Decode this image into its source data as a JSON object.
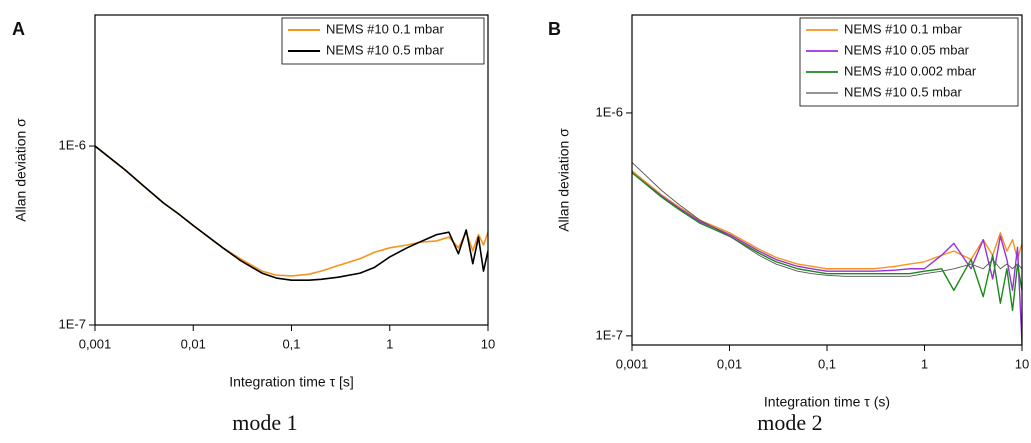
{
  "chart_data": [
    {
      "type": "line",
      "panel_label": "A",
      "caption": "mode 1",
      "xlabel": "Integration time  τ [s]",
      "ylabel": "Allan deviation σ",
      "log_x": true,
      "log_y": true,
      "legend": "upper right",
      "xlim": [
        0.001,
        10
      ],
      "xticks": [
        {
          "value": 0.001,
          "label": "0,001"
        },
        {
          "value": 0.01,
          "label": "0,01"
        },
        {
          "value": 0.1,
          "label": "0,1"
        },
        1,
        10
      ],
      "ylim": [
        1e-07,
        5.4e-06
      ],
      "yticks": [
        {
          "value": 1e-06,
          "label": "1E-6"
        },
        {
          "value": 1e-07,
          "label": "1E-7"
        }
      ],
      "x": [
        0.001,
        0.002,
        0.003,
        0.005,
        0.007,
        0.01,
        0.02,
        0.03,
        0.05,
        0.07,
        0.1,
        0.15,
        0.2,
        0.3,
        0.5,
        0.7,
        1,
        1.5,
        2,
        3,
        4,
        5,
        6,
        7,
        8,
        9,
        10
      ],
      "series": [
        {
          "name": "NEMS #10 0.1 mbar",
          "color": "#f7941d",
          "width": 1.6,
          "values": [
            1e-06,
            7.4e-07,
            6.1e-07,
            4.8e-07,
            4.2e-07,
            3.6e-07,
            2.7e-07,
            2.35e-07,
            2e-07,
            1.9e-07,
            1.88e-07,
            1.92e-07,
            2e-07,
            2.15e-07,
            2.35e-07,
            2.55e-07,
            2.7e-07,
            2.8e-07,
            2.9e-07,
            2.95e-07,
            3.1e-07,
            2.7e-07,
            3.3e-07,
            2.6e-07,
            3.2e-07,
            2.8e-07,
            3.3e-07
          ]
        },
        {
          "name": "NEMS #10 0.5 mbar",
          "color": "#000000",
          "width": 1.6,
          "values": [
            1e-06,
            7.4e-07,
            6.1e-07,
            4.8e-07,
            4.2e-07,
            3.6e-07,
            2.7e-07,
            2.3e-07,
            1.95e-07,
            1.83e-07,
            1.78e-07,
            1.78e-07,
            1.8e-07,
            1.85e-07,
            1.95e-07,
            2.1e-07,
            2.4e-07,
            2.7e-07,
            2.9e-07,
            3.2e-07,
            3.3e-07,
            2.5e-07,
            3.4e-07,
            2.2e-07,
            3.1e-07,
            2e-07,
            2.6e-07
          ]
        }
      ]
    },
    {
      "type": "line",
      "panel_label": "B",
      "caption": "mode 2",
      "xlabel": "Integration time τ (s)",
      "ylabel": "Allan deviation σ",
      "log_x": true,
      "log_y": true,
      "legend": "upper right",
      "xlim": [
        0.001,
        10
      ],
      "xticks": [
        {
          "value": 0.001,
          "label": "0,001"
        },
        {
          "value": 0.01,
          "label": "0,01"
        },
        {
          "value": 0.1,
          "label": "0,1"
        },
        1,
        10
      ],
      "ylim": [
        9.1e-08,
        2.75e-06
      ],
      "yticks": [
        {
          "value": 1e-06,
          "label": "1E-6"
        },
        {
          "value": 1e-07,
          "label": "1E-7"
        }
      ],
      "x": [
        0.001,
        0.002,
        0.003,
        0.005,
        0.007,
        0.01,
        0.02,
        0.03,
        0.05,
        0.07,
        0.1,
        0.15,
        0.2,
        0.3,
        0.5,
        0.7,
        1,
        1.5,
        2,
        3,
        4,
        5,
        6,
        7,
        8,
        9,
        10
      ],
      "series": [
        {
          "name": "NEMS #10 0.1 mbar",
          "color": "#f7941d",
          "width": 1.4,
          "values": [
            5.5e-07,
            4.3e-07,
            3.8e-07,
            3.3e-07,
            3.1e-07,
            2.9e-07,
            2.45e-07,
            2.25e-07,
            2.1e-07,
            2.05e-07,
            2e-07,
            2e-07,
            2e-07,
            2e-07,
            2.05e-07,
            2.1e-07,
            2.15e-07,
            2.3e-07,
            2.4e-07,
            2.2e-07,
            2.7e-07,
            2.3e-07,
            2.9e-07,
            2.4e-07,
            2.7e-07,
            2.2e-07,
            2.6e-07
          ]
        },
        {
          "name": "NEMS #10 0.05 mbar",
          "color": "#9b30d9",
          "width": 1.4,
          "values": [
            5.4e-07,
            4.25e-07,
            3.75e-07,
            3.25e-07,
            3.05e-07,
            2.85e-07,
            2.4e-07,
            2.2e-07,
            2.05e-07,
            2e-07,
            1.95e-07,
            1.95e-07,
            1.95e-07,
            1.95e-07,
            1.97e-07,
            2e-07,
            2e-07,
            2.3e-07,
            2.6e-07,
            2e-07,
            2.7e-07,
            1.8e-07,
            2.8e-07,
            2.2e-07,
            1.6e-07,
            2.5e-07,
            9.2e-08
          ]
        },
        {
          "name": "NEMS #10 0.002 mbar",
          "color": "#1a8a1a",
          "width": 1.4,
          "values": [
            5.4e-07,
            4.2e-07,
            3.7e-07,
            3.2e-07,
            3e-07,
            2.8e-07,
            2.35e-07,
            2.15e-07,
            2e-07,
            1.95e-07,
            1.9e-07,
            1.9e-07,
            1.9e-07,
            1.9e-07,
            1.9e-07,
            1.9e-07,
            1.95e-07,
            2e-07,
            1.6e-07,
            2.2e-07,
            1.5e-07,
            2.3e-07,
            1.4e-07,
            2e-07,
            1.3e-07,
            2.1e-07,
            1.6e-07
          ]
        },
        {
          "name": "NEMS #10 0.5 mbar",
          "color": "#555555",
          "width": 0.9,
          "values": [
            6e-07,
            4.5e-07,
            3.9e-07,
            3.3e-07,
            3.05e-07,
            2.8e-07,
            2.3e-07,
            2.1e-07,
            1.95e-07,
            1.9e-07,
            1.87e-07,
            1.85e-07,
            1.85e-07,
            1.85e-07,
            1.85e-07,
            1.85e-07,
            1.9e-07,
            1.95e-07,
            2e-07,
            2.1e-07,
            2e-07,
            2.2e-07,
            2e-07,
            2.1e-07,
            2e-07,
            2.1e-07,
            2e-07
          ]
        }
      ]
    }
  ]
}
